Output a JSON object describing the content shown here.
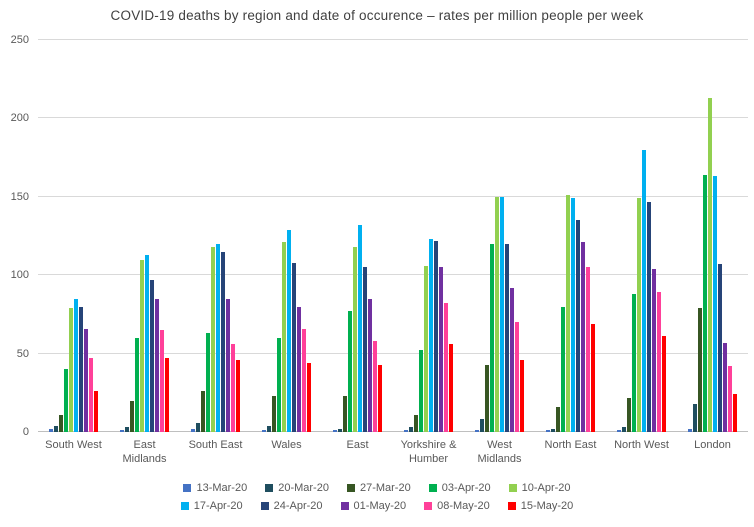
{
  "chart_data": {
    "type": "bar",
    "title": "COVID-19 deaths by region and date of occurence – rates per million people per week",
    "xlabel": "",
    "ylabel": "",
    "ylim": [
      0,
      250
    ],
    "yticks": [
      0,
      50,
      100,
      150,
      200,
      250
    ],
    "grid": true,
    "legend_position": "bottom",
    "legend_items_per_row": 5,
    "categories": [
      "South West",
      "East Midlands",
      "South East",
      "Wales",
      "East",
      "Yorkshire & Humber",
      "West Midlands",
      "North East",
      "North West",
      "London"
    ],
    "series": [
      {
        "name": "13-Mar-20",
        "color": "#4472C4",
        "values": [
          2,
          1,
          2,
          1,
          1,
          1,
          1,
          1,
          1,
          2
        ]
      },
      {
        "name": "20-Mar-20",
        "color": "#1F4E5F",
        "values": [
          4,
          3,
          6,
          4,
          2,
          3,
          8,
          2,
          3,
          18
        ]
      },
      {
        "name": "27-Mar-20",
        "color": "#375623",
        "values": [
          11,
          20,
          26,
          23,
          23,
          11,
          43,
          16,
          22,
          79
        ]
      },
      {
        "name": "03-Apr-20",
        "color": "#00B050",
        "values": [
          40,
          60,
          63,
          60,
          77,
          52,
          120,
          80,
          88,
          164
        ]
      },
      {
        "name": "10-Apr-20",
        "color": "#92D050",
        "values": [
          79,
          110,
          118,
          121,
          118,
          106,
          150,
          151,
          149,
          213
        ]
      },
      {
        "name": "17-Apr-20",
        "color": "#00B0F0",
        "values": [
          85,
          113,
          120,
          129,
          132,
          123,
          150,
          149,
          180,
          163
        ]
      },
      {
        "name": "24-Apr-20",
        "color": "#264478",
        "values": [
          80,
          97,
          115,
          108,
          105,
          122,
          120,
          135,
          147,
          107
        ]
      },
      {
        "name": "01-May-20",
        "color": "#7030A0",
        "values": [
          66,
          85,
          85,
          80,
          85,
          105,
          92,
          121,
          104,
          57
        ]
      },
      {
        "name": "08-May-20",
        "color": "#FF4099",
        "values": [
          47,
          65,
          56,
          66,
          58,
          82,
          70,
          105,
          89,
          42
        ]
      },
      {
        "name": "15-May-20",
        "color": "#FF0000",
        "values": [
          26,
          47,
          46,
          44,
          43,
          56,
          46,
          69,
          61,
          24
        ]
      }
    ]
  }
}
